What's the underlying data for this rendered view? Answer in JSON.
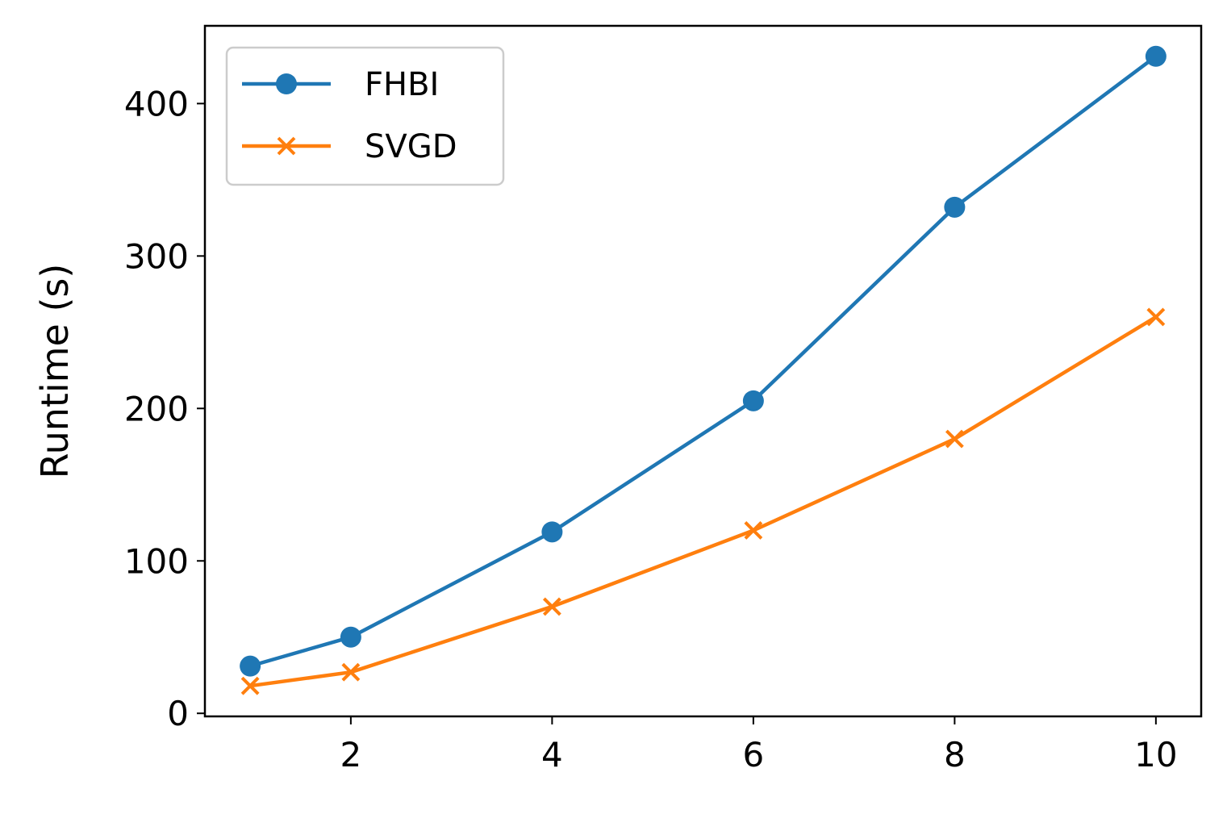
{
  "chart_data": {
    "type": "line",
    "title": "",
    "xlabel": "",
    "ylabel": "Runtime (s)",
    "xlim": [
      0.55,
      10.45
    ],
    "ylim": [
      -2,
      451
    ],
    "xticks": [
      2,
      4,
      6,
      8,
      10
    ],
    "yticks": [
      0,
      100,
      200,
      300,
      400
    ],
    "grid": false,
    "legend_position": "top-left",
    "series": [
      {
        "name": "FHBI",
        "color": "#1f77b4",
        "marker": "circle",
        "x": [
          1,
          2,
          4,
          6,
          8,
          10
        ],
        "y": [
          31,
          50,
          119,
          205,
          332,
          431
        ]
      },
      {
        "name": "SVGD",
        "color": "#ff7f0e",
        "marker": "x",
        "x": [
          1,
          2,
          4,
          6,
          8,
          10
        ],
        "y": [
          18,
          27,
          70,
          120,
          180,
          260
        ]
      }
    ]
  }
}
